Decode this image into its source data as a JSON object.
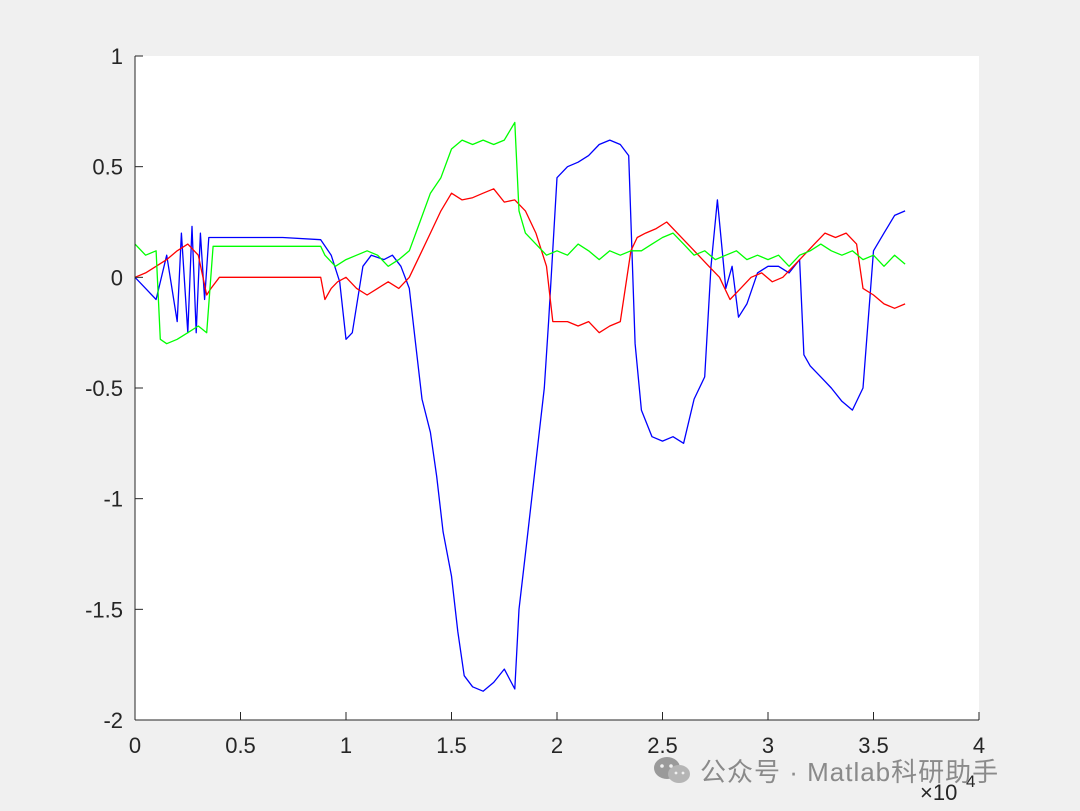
{
  "chart_data": {
    "type": "line",
    "title": "",
    "xlabel": "",
    "ylabel": "",
    "xlim": [
      0,
      4
    ],
    "ylim": [
      -2,
      1
    ],
    "x_scale_exponent_label": "×10",
    "x_scale_exponent": "4",
    "x_ticks": [
      0,
      0.5,
      1,
      1.5,
      2,
      2.5,
      3,
      3.5,
      4
    ],
    "x_tick_labels": [
      "0",
      "0.5",
      "1",
      "1.5",
      "2",
      "2.5",
      "3",
      "3.5",
      "4"
    ],
    "y_ticks": [
      1,
      0.5,
      0,
      -0.5,
      -1,
      -1.5,
      -2
    ],
    "y_tick_labels": [
      "1",
      "0.5",
      "0",
      "-0.5",
      "-1",
      "-1.5",
      "-2"
    ],
    "grid": false,
    "series": [
      {
        "color": "#0000ff",
        "x": [
          0,
          0.05,
          0.1,
          0.15,
          0.2,
          0.22,
          0.25,
          0.27,
          0.29,
          0.31,
          0.33,
          0.35,
          0.37,
          0.5,
          0.7,
          0.88,
          0.93,
          0.97,
          1.0,
          1.03,
          1.08,
          1.12,
          1.18,
          1.22,
          1.26,
          1.3,
          1.33,
          1.36,
          1.4,
          1.43,
          1.46,
          1.5,
          1.53,
          1.56,
          1.6,
          1.65,
          1.7,
          1.75,
          1.8,
          1.82,
          1.85,
          1.88,
          1.91,
          1.94,
          1.96,
          2.0,
          2.05,
          2.1,
          2.15,
          2.2,
          2.25,
          2.3,
          2.34,
          2.37,
          2.4,
          2.45,
          2.5,
          2.55,
          2.6,
          2.65,
          2.7,
          2.73,
          2.76,
          2.8,
          2.83,
          2.86,
          2.9,
          2.95,
          3.0,
          3.05,
          3.1,
          3.15,
          3.17,
          3.2,
          3.25,
          3.3,
          3.35,
          3.4,
          3.45,
          3.5,
          3.55,
          3.6,
          3.65
        ],
        "y": [
          0,
          -0.05,
          -0.1,
          0.1,
          -0.2,
          0.2,
          -0.25,
          0.23,
          -0.25,
          0.2,
          -0.1,
          0.18,
          0.18,
          0.18,
          0.18,
          0.17,
          0.1,
          -0.02,
          -0.28,
          -0.25,
          0.05,
          0.1,
          0.08,
          0.1,
          0.05,
          -0.05,
          -0.3,
          -0.55,
          -0.7,
          -0.9,
          -1.15,
          -1.35,
          -1.6,
          -1.8,
          -1.85,
          -1.87,
          -1.83,
          -1.77,
          -1.86,
          -1.5,
          -1.25,
          -1.0,
          -0.75,
          -0.5,
          -0.2,
          0.45,
          0.5,
          0.52,
          0.55,
          0.6,
          0.62,
          0.6,
          0.55,
          -0.3,
          -0.6,
          -0.72,
          -0.74,
          -0.72,
          -0.75,
          -0.55,
          -0.45,
          0.05,
          0.35,
          -0.05,
          0.05,
          -0.18,
          -0.12,
          0.02,
          0.05,
          0.05,
          0.02,
          0.08,
          -0.35,
          -0.4,
          -0.45,
          -0.5,
          -0.56,
          -0.6,
          -0.5,
          0.12,
          0.2,
          0.28,
          0.3
        ]
      },
      {
        "color": "#ff0000",
        "x": [
          0,
          0.05,
          0.1,
          0.15,
          0.2,
          0.25,
          0.3,
          0.34,
          0.36,
          0.4,
          0.6,
          0.88,
          0.9,
          0.93,
          0.96,
          1.0,
          1.05,
          1.1,
          1.15,
          1.2,
          1.25,
          1.3,
          1.35,
          1.4,
          1.45,
          1.5,
          1.55,
          1.6,
          1.65,
          1.7,
          1.75,
          1.8,
          1.85,
          1.9,
          1.95,
          1.98,
          2.05,
          2.1,
          2.15,
          2.2,
          2.25,
          2.3,
          2.35,
          2.38,
          2.42,
          2.47,
          2.52,
          2.57,
          2.62,
          2.67,
          2.72,
          2.77,
          2.82,
          2.87,
          2.92,
          2.97,
          3.02,
          3.07,
          3.12,
          3.17,
          3.22,
          3.27,
          3.32,
          3.37,
          3.42,
          3.45,
          3.5,
          3.55,
          3.6,
          3.65
        ],
        "y": [
          0,
          0.02,
          0.05,
          0.08,
          0.12,
          0.15,
          0.1,
          -0.08,
          -0.05,
          0.0,
          0.0,
          0.0,
          -0.1,
          -0.05,
          -0.02,
          0.0,
          -0.05,
          -0.08,
          -0.05,
          -0.02,
          -0.05,
          0.0,
          0.1,
          0.2,
          0.3,
          0.38,
          0.35,
          0.36,
          0.38,
          0.4,
          0.34,
          0.35,
          0.3,
          0.2,
          0.05,
          -0.2,
          -0.2,
          -0.22,
          -0.2,
          -0.25,
          -0.22,
          -0.2,
          0.12,
          0.18,
          0.2,
          0.22,
          0.25,
          0.2,
          0.15,
          0.1,
          0.05,
          0.0,
          -0.1,
          -0.05,
          0.0,
          0.02,
          -0.02,
          0.0,
          0.05,
          0.1,
          0.15,
          0.2,
          0.18,
          0.2,
          0.15,
          -0.05,
          -0.08,
          -0.12,
          -0.14,
          -0.12
        ]
      },
      {
        "color": "#00ff00",
        "x": [
          0,
          0.05,
          0.1,
          0.12,
          0.15,
          0.2,
          0.25,
          0.3,
          0.34,
          0.37,
          0.5,
          0.7,
          0.88,
          0.9,
          0.95,
          1.0,
          1.05,
          1.1,
          1.15,
          1.2,
          1.25,
          1.3,
          1.35,
          1.4,
          1.45,
          1.5,
          1.55,
          1.6,
          1.65,
          1.7,
          1.75,
          1.8,
          1.82,
          1.85,
          1.9,
          1.95,
          2.0,
          2.05,
          2.1,
          2.15,
          2.2,
          2.25,
          2.3,
          2.35,
          2.4,
          2.45,
          2.5,
          2.55,
          2.6,
          2.65,
          2.7,
          2.75,
          2.8,
          2.85,
          2.9,
          2.95,
          3.0,
          3.05,
          3.1,
          3.15,
          3.2,
          3.25,
          3.3,
          3.35,
          3.4,
          3.45,
          3.5,
          3.55,
          3.6,
          3.65
        ],
        "y": [
          0.15,
          0.1,
          0.12,
          -0.28,
          -0.3,
          -0.28,
          -0.25,
          -0.22,
          -0.25,
          0.14,
          0.14,
          0.14,
          0.14,
          0.1,
          0.05,
          0.08,
          0.1,
          0.12,
          0.1,
          0.05,
          0.08,
          0.12,
          0.25,
          0.38,
          0.45,
          0.58,
          0.62,
          0.6,
          0.62,
          0.6,
          0.62,
          0.7,
          0.3,
          0.2,
          0.15,
          0.1,
          0.12,
          0.1,
          0.15,
          0.12,
          0.08,
          0.12,
          0.1,
          0.12,
          0.12,
          0.15,
          0.18,
          0.2,
          0.15,
          0.1,
          0.12,
          0.08,
          0.1,
          0.12,
          0.08,
          0.1,
          0.08,
          0.1,
          0.05,
          0.1,
          0.12,
          0.15,
          0.12,
          0.1,
          0.12,
          0.08,
          0.1,
          0.05,
          0.1,
          0.06
        ]
      }
    ]
  },
  "watermark": {
    "text": "公众号 · Matlab科研助手",
    "icon": "wechat-icon"
  }
}
